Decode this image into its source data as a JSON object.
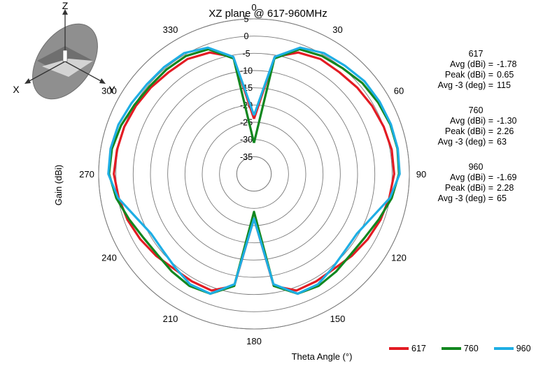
{
  "chart_data": {
    "type": "polar",
    "title": "XZ plane @ 617-960MHz",
    "xlabel": "Theta Angle (°)",
    "ylabel": "Gain (dBi)",
    "r_range": [
      -40,
      5
    ],
    "r_ticks": [
      5,
      0,
      -5,
      -10,
      -15,
      -20,
      -25,
      -30,
      -35
    ],
    "angle_ticks": [
      0,
      30,
      60,
      90,
      120,
      150,
      180,
      210,
      240,
      270,
      300,
      330
    ],
    "direction": "clockwise",
    "zero_at": "top",
    "grid": true,
    "theta": [
      0,
      10,
      20,
      30,
      40,
      50,
      60,
      70,
      80,
      90,
      100,
      110,
      120,
      130,
      140,
      150,
      160,
      170,
      180,
      190,
      200,
      210,
      220,
      230,
      240,
      250,
      260,
      270,
      280,
      290,
      300,
      310,
      320,
      330,
      340,
      350
    ],
    "series": [
      {
        "name": "617",
        "color": "#e31b23",
        "values": [
          -24,
          -5.5,
          -2.5,
          -1.5,
          -1.5,
          -1,
          -0.5,
          0,
          0.5,
          0.6,
          -0.2,
          -1,
          -2,
          -3,
          -4,
          -4,
          -4,
          -7,
          -27,
          -7,
          -4,
          -4,
          -4,
          -3,
          -2,
          -1,
          -0.2,
          0.6,
          0.3,
          0,
          -0.5,
          -1,
          -1.5,
          -1.5,
          -2.5,
          -5.5
        ]
      },
      {
        "name": "760",
        "color": "#12871f",
        "values": [
          -31,
          -6,
          -1.5,
          -0.5,
          0,
          1,
          1.5,
          2,
          2.2,
          2,
          0.5,
          -1.5,
          -3,
          -3.5,
          -3,
          -2.5,
          -3,
          -7,
          -29,
          -7,
          -3,
          -2.5,
          -3,
          -3.5,
          -3,
          -1.5,
          0.5,
          2,
          1.8,
          1,
          0,
          -0.5,
          -0.5,
          -0.5,
          -1.5,
          -6
        ]
      },
      {
        "name": "960",
        "color": "#1eaee4",
        "values": [
          -23,
          -5.5,
          -1,
          0.5,
          1,
          1.8,
          2,
          2.2,
          2.3,
          2.2,
          0,
          -3.5,
          -5.5,
          -5.5,
          -4.5,
          -3,
          -3,
          -7.5,
          -27,
          -7.5,
          -3,
          -3,
          -4.5,
          -5.5,
          -5.5,
          -3.5,
          0,
          2.2,
          2.2,
          1.8,
          1,
          0.5,
          0.5,
          0.5,
          -1,
          -5.5
        ]
      }
    ]
  },
  "axis_letters": {
    "z": "Z",
    "x": "X",
    "y": "Y"
  },
  "stats": [
    {
      "freq": "617",
      "avg_label": "Avg (dBi) =",
      "avg": "-1.78",
      "peak_label": "Peak (dBi) =",
      "peak": "0.65",
      "bw_label": "Avg -3 (deg) =",
      "bw": "115"
    },
    {
      "freq": "760",
      "avg_label": "Avg (dBi) =",
      "avg": "-1.30",
      "peak_label": "Peak (dBi) =",
      "peak": "2.26",
      "bw_label": "Avg -3 (deg) =",
      "bw": "63"
    },
    {
      "freq": "960",
      "avg_label": "Avg (dBi) =",
      "avg": "-1.69",
      "peak_label": "Peak (dBi) =",
      "peak": "2.28",
      "bw_label": "Avg -3 (deg) =",
      "bw": "65"
    }
  ]
}
